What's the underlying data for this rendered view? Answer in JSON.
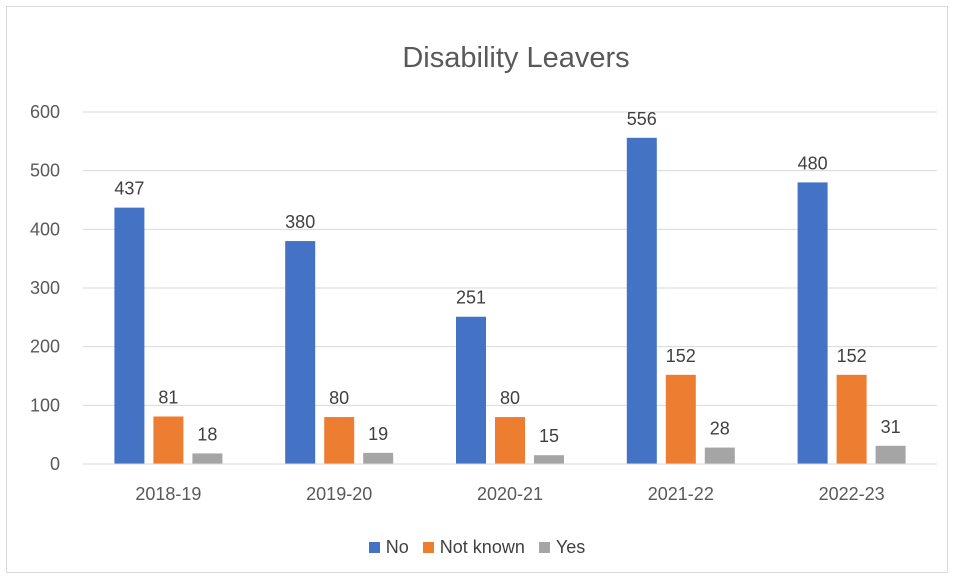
{
  "chart_data": {
    "type": "bar",
    "title": "Disability Leavers",
    "categories": [
      "2018-19",
      "2019-20",
      "2020-21",
      "2021-22",
      "2022-23"
    ],
    "series": [
      {
        "name": "No",
        "color": "#4472c4",
        "values": [
          437,
          380,
          251,
          556,
          480
        ]
      },
      {
        "name": "Not known",
        "color": "#ed7d31",
        "values": [
          81,
          80,
          80,
          152,
          152
        ]
      },
      {
        "name": "Yes",
        "color": "#a5a5a5",
        "values": [
          18,
          19,
          15,
          28,
          31
        ]
      }
    ],
    "ylim": [
      0,
      600
    ],
    "yticks": [
      0,
      100,
      200,
      300,
      400,
      500,
      600
    ],
    "grid": true,
    "legend_position": "bottom",
    "data_labels": true
  }
}
